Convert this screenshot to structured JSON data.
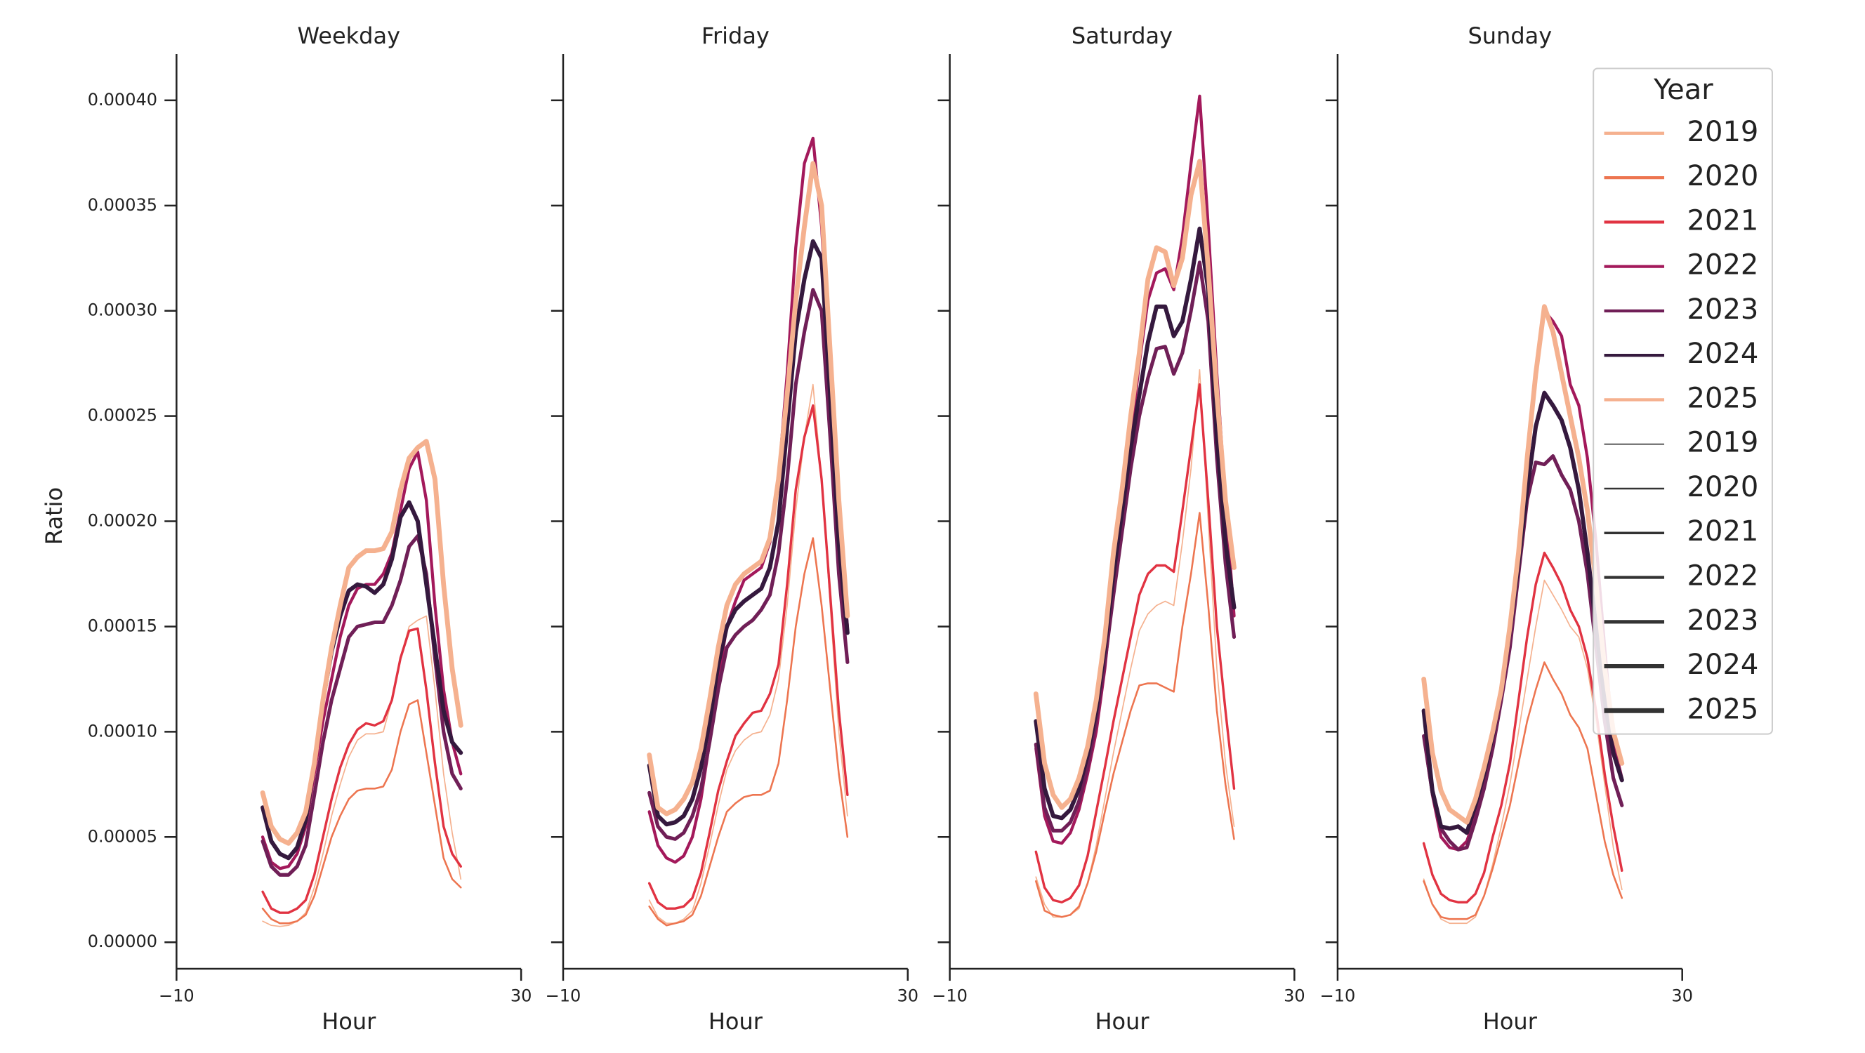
{
  "chart_data": {
    "type": "line",
    "ylabel": "Ratio",
    "xlabel": "Hour",
    "legend_title": "Year",
    "legend": "upper right",
    "xlim": [
      -10,
      30
    ],
    "xticks": [
      {
        "value": -10,
        "label": "−10"
      },
      {
        "value": 30,
        "label": "30"
      }
    ],
    "ylim": [
      -1.26e-05,
      0.000422
    ],
    "yticks": [
      {
        "value": 0,
        "label": "0.00000"
      },
      {
        "value": 5e-05,
        "label": "0.00005"
      },
      {
        "value": 0.0001,
        "label": "0.00010"
      },
      {
        "value": 0.00015,
        "label": "0.00015"
      },
      {
        "value": 0.0002,
        "label": "0.00020"
      },
      {
        "value": 0.00025,
        "label": "0.00025"
      },
      {
        "value": 0.0003,
        "label": "0.00030"
      },
      {
        "value": 0.00035,
        "label": "0.00035"
      },
      {
        "value": 0.0004,
        "label": "0.00040"
      }
    ],
    "x": [
      0,
      1,
      2,
      3,
      4,
      5,
      6,
      7,
      8,
      9,
      10,
      11,
      12,
      13,
      14,
      15,
      16,
      17,
      18,
      19,
      20,
      21,
      22,
      23
    ],
    "series": [
      {
        "name": "2019",
        "color": "#f5b18f",
        "linewidth": 1.0
      },
      {
        "name": "2020",
        "color": "#ed7550",
        "linewidth": 1.5
      },
      {
        "name": "2021",
        "color": "#e13342",
        "linewidth": 2.0
      },
      {
        "name": "2022",
        "color": "#a3195b",
        "linewidth": 2.5
      },
      {
        "name": "2023",
        "color": "#701f57",
        "linewidth": 3.0
      },
      {
        "name": "2024",
        "color": "#35193e",
        "linewidth": 3.5
      },
      {
        "name": "2025",
        "color": "#f5b18f",
        "linewidth": 4.0
      }
    ],
    "panels": [
      {
        "title": "Weekday",
        "values": [
          [
            1e-05,
            8e-06,
            7.5e-06,
            8e-06,
            1e-05,
            1.4e-05,
            2.6e-05,
            4.2e-05,
            6e-05,
            7.5e-05,
            8.8e-05,
            9.6e-05,
            9.9e-05,
            9.9e-05,
            0.0001,
            0.000115,
            0.000135,
            0.00015,
            0.000153,
            0.000155,
            0.00012,
            8e-05,
            5.2e-05,
            3e-05
          ],
          [
            1.6e-05,
            1.1e-05,
            9e-06,
            9e-06,
            1e-05,
            1.3e-05,
            2.2e-05,
            3.6e-05,
            5e-05,
            6e-05,
            6.8e-05,
            7.2e-05,
            7.3e-05,
            7.3e-05,
            7.4e-05,
            8.2e-05,
            0.0001,
            0.000113,
            0.000115,
            9e-05,
            6.5e-05,
            4e-05,
            3e-05,
            2.6e-05
          ],
          [
            2.4e-05,
            1.6e-05,
            1.4e-05,
            1.4e-05,
            1.6e-05,
            2e-05,
            3.2e-05,
            5e-05,
            6.8e-05,
            8.3e-05,
            9.4e-05,
            0.000101,
            0.000104,
            0.000103,
            0.000105,
            0.000115,
            0.000135,
            0.000148,
            0.000149,
            0.00012,
            8.5e-05,
            5.5e-05,
            4.2e-05,
            3.6e-05
          ],
          [
            5e-05,
            3.8e-05,
            3.5e-05,
            3.6e-05,
            4.2e-05,
            5.5e-05,
            8e-05,
            0.000105,
            0.000125,
            0.000145,
            0.00016,
            0.000168,
            0.00017,
            0.00017,
            0.000175,
            0.000185,
            0.000205,
            0.000225,
            0.000233,
            0.00021,
            0.00016,
            0.00012,
            9.5e-05,
            8e-05
          ],
          [
            4.8e-05,
            3.6e-05,
            3.2e-05,
            3.2e-05,
            3.6e-05,
            4.6e-05,
            7e-05,
            9.5e-05,
            0.000115,
            0.00013,
            0.000145,
            0.00015,
            0.000151,
            0.000152,
            0.000152,
            0.00016,
            0.000172,
            0.000188,
            0.000193,
            0.000175,
            0.000135,
            0.0001,
            8e-05,
            7.3e-05
          ],
          [
            6.4e-05,
            4.8e-05,
            4.2e-05,
            4e-05,
            4.5e-05,
            5.8e-05,
            8.5e-05,
            0.000115,
            0.000138,
            0.000155,
            0.000167,
            0.00017,
            0.000169,
            0.000166,
            0.00017,
            0.000182,
            0.000202,
            0.000209,
            0.0002,
            0.00017,
            0.00014,
            0.00011,
            9.5e-05,
            9e-05
          ],
          [
            7.1e-05,
            5.5e-05,
            4.9e-05,
            4.7e-05,
            5.2e-05,
            6.2e-05,
            8.5e-05,
            0.000115,
            0.00014,
            0.00016,
            0.000178,
            0.000183,
            0.000186,
            0.000186,
            0.000187,
            0.000195,
            0.000215,
            0.00023,
            0.000235,
            0.000238,
            0.00022,
            0.00017,
            0.00013,
            0.000103
          ]
        ]
      },
      {
        "title": "Friday",
        "values": [
          [
            2e-05,
            1.2e-05,
            9e-06,
            9e-06,
            1.1e-05,
            1.5e-05,
            2.8e-05,
            4.6e-05,
            6.5e-05,
            8.2e-05,
            9.1e-05,
            9.6e-05,
            9.9e-05,
            0.0001,
            0.000108,
            0.000125,
            0.00016,
            0.000205,
            0.00024,
            0.000265,
            0.00022,
            0.00016,
            0.0001,
            6e-05
          ],
          [
            1.7e-05,
            1.1e-05,
            8e-06,
            9e-06,
            1e-05,
            1.3e-05,
            2.2e-05,
            3.6e-05,
            5e-05,
            6.2e-05,
            6.6e-05,
            6.9e-05,
            7e-05,
            7e-05,
            7.2e-05,
            8.5e-05,
            0.000115,
            0.00015,
            0.000175,
            0.000192,
            0.00016,
            0.00012,
            8e-05,
            5e-05
          ],
          [
            2.8e-05,
            1.9e-05,
            1.6e-05,
            1.6e-05,
            1.7e-05,
            2.1e-05,
            3.3e-05,
            5.2e-05,
            7.2e-05,
            8.6e-05,
            9.8e-05,
            0.000104,
            0.000109,
            0.00011,
            0.000118,
            0.000132,
            0.00017,
            0.000215,
            0.00024,
            0.000255,
            0.00022,
            0.000165,
            0.00011,
            7e-05
          ],
          [
            6.2e-05,
            4.6e-05,
            4e-05,
            3.8e-05,
            4.1e-05,
            5e-05,
            6.8e-05,
            9.5e-05,
            0.000125,
            0.00015,
            0.000162,
            0.000172,
            0.000175,
            0.000178,
            0.00019,
            0.00022,
            0.00027,
            0.00033,
            0.00037,
            0.000382,
            0.00034,
            0.00027,
            0.0002,
            0.00015
          ],
          [
            7.1e-05,
            5.5e-05,
            5e-05,
            4.9e-05,
            5.2e-05,
            6e-05,
            7.3e-05,
            9.5e-05,
            0.00012,
            0.00014,
            0.000146,
            0.00015,
            0.000153,
            0.000158,
            0.000165,
            0.000185,
            0.00022,
            0.000265,
            0.00029,
            0.00031,
            0.0003,
            0.00024,
            0.000175,
            0.000133
          ],
          [
            8.4e-05,
            6e-05,
            5.6e-05,
            5.7e-05,
            6e-05,
            6.8e-05,
            8.3e-05,
            0.000105,
            0.000132,
            0.00015,
            0.000158,
            0.000162,
            0.000165,
            0.000168,
            0.000178,
            0.0002,
            0.000245,
            0.00029,
            0.000315,
            0.000333,
            0.000325,
            0.00026,
            0.00019,
            0.000147
          ],
          [
            8.9e-05,
            6.4e-05,
            6.1e-05,
            6.3e-05,
            6.8e-05,
            7.6e-05,
            9.2e-05,
            0.000115,
            0.00014,
            0.00016,
            0.00017,
            0.000175,
            0.000178,
            0.000181,
            0.000192,
            0.00022,
            0.00026,
            0.000305,
            0.00034,
            0.00037,
            0.00035,
            0.00028,
            0.00021,
            0.000155
          ]
        ]
      },
      {
        "title": "Saturday",
        "values": [
          [
            3.1e-05,
            1.8e-05,
            1.2e-05,
            1.2e-05,
            1.3e-05,
            1.6e-05,
            2.8e-05,
            4.6e-05,
            6.8e-05,
            9e-05,
            0.00011,
            0.00013,
            0.000148,
            0.000156,
            0.00016,
            0.000162,
            0.00016,
            0.00019,
            0.000225,
            0.000272,
            0.0002,
            0.00013,
            8.5e-05,
            5.5e-05
          ],
          [
            2.9e-05,
            1.5e-05,
            1.3e-05,
            1.2e-05,
            1.3e-05,
            1.7e-05,
            2.8e-05,
            4.3e-05,
            6.2e-05,
            8e-05,
            9.5e-05,
            0.00011,
            0.000122,
            0.000123,
            0.000123,
            0.000121,
            0.000119,
            0.00015,
            0.000175,
            0.000204,
            0.00016,
            0.00011,
            7.5e-05,
            4.9e-05
          ],
          [
            4.3e-05,
            2.6e-05,
            2e-05,
            1.9e-05,
            2.1e-05,
            2.7e-05,
            4.1e-05,
            6.2e-05,
            8.3e-05,
            0.000105,
            0.000125,
            0.000145,
            0.000165,
            0.000175,
            0.000179,
            0.000179,
            0.000176,
            0.000205,
            0.000235,
            0.000265,
            0.00021,
            0.00015,
            0.00011,
            7.3e-05
          ],
          [
            9.2e-05,
            6e-05,
            4.8e-05,
            4.7e-05,
            5.2e-05,
            6.3e-05,
            8e-05,
            0.0001,
            0.00013,
            0.00017,
            0.000205,
            0.00024,
            0.000275,
            0.000305,
            0.000318,
            0.00032,
            0.00031,
            0.000335,
            0.00037,
            0.000402,
            0.00034,
            0.00027,
            0.00021,
            0.000155
          ],
          [
            9.4e-05,
            6.4e-05,
            5.3e-05,
            5.3e-05,
            5.7e-05,
            6.7e-05,
            8.3e-05,
            0.000105,
            0.000133,
            0.000165,
            0.000195,
            0.000225,
            0.00025,
            0.000268,
            0.000282,
            0.000283,
            0.00027,
            0.00028,
            0.0003,
            0.000323,
            0.000295,
            0.00023,
            0.00018,
            0.000145
          ],
          [
            0.000105,
            7.3e-05,
            6e-05,
            5.9e-05,
            6.3e-05,
            7.3e-05,
            8.9e-05,
            0.00011,
            0.00014,
            0.000175,
            0.000205,
            0.000235,
            0.00026,
            0.000285,
            0.000302,
            0.000302,
            0.000288,
            0.000295,
            0.000315,
            0.000339,
            0.00031,
            0.00024,
            0.00019,
            0.000159
          ],
          [
            0.000118,
            8.5e-05,
            7e-05,
            6.4e-05,
            6.8e-05,
            7.8e-05,
            9.3e-05,
            0.000115,
            0.000145,
            0.000185,
            0.000215,
            0.00025,
            0.00028,
            0.000315,
            0.00033,
            0.000328,
            0.000312,
            0.000325,
            0.000355,
            0.000371,
            0.00032,
            0.00026,
            0.00021,
            0.000178
          ]
        ]
      },
      {
        "title": "Sunday",
        "values": [
          [
            3e-05,
            1.8e-05,
            1.1e-05,
            9e-06,
            9e-06,
            9e-06,
            1.2e-05,
            2.2e-05,
            3.7e-05,
            5.5e-05,
            7.5e-05,
            0.0001,
            0.000125,
            0.00015,
            0.000172,
            0.000165,
            0.000158,
            0.00015,
            0.000145,
            0.00013,
            0.000105,
            7.5e-05,
            4.5e-05,
            2.5e-05
          ],
          [
            2.9e-05,
            1.8e-05,
            1.2e-05,
            1.1e-05,
            1.1e-05,
            1.1e-05,
            1.3e-05,
            2.2e-05,
            3.5e-05,
            5e-05,
            6.5e-05,
            8.5e-05,
            0.000105,
            0.00012,
            0.000133,
            0.000125,
            0.000118,
            0.000108,
            0.000102,
            9.2e-05,
            7e-05,
            4.8e-05,
            3.2e-05,
            2.1e-05
          ],
          [
            4.7e-05,
            3.2e-05,
            2.3e-05,
            2e-05,
            1.9e-05,
            1.9e-05,
            2.3e-05,
            3.3e-05,
            5e-05,
            6.5e-05,
            8.5e-05,
            0.000115,
            0.000145,
            0.00017,
            0.000185,
            0.000178,
            0.00017,
            0.000158,
            0.00015,
            0.000135,
            0.00011,
            8e-05,
            5.5e-05,
            3.4e-05
          ],
          [
            9.8e-05,
            7e-05,
            5e-05,
            4.5e-05,
            4.4e-05,
            4.8e-05,
            6e-05,
            7.5e-05,
            9.5e-05,
            0.000115,
            0.000145,
            0.00018,
            0.000225,
            0.00027,
            0.0003,
            0.000295,
            0.000288,
            0.000265,
            0.000255,
            0.00023,
            0.00019,
            0.00014,
            9.5e-05,
            7.8e-05
          ],
          [
            9.8e-05,
            7.1e-05,
            5.4e-05,
            4.8e-05,
            4.4e-05,
            4.5e-05,
            5.8e-05,
            7.3e-05,
            9.2e-05,
            0.000115,
            0.00014,
            0.000175,
            0.00021,
            0.000228,
            0.000227,
            0.000231,
            0.000222,
            0.000215,
            0.0002,
            0.000175,
            0.00014,
            0.000105,
            7.8e-05,
            6.5e-05
          ],
          [
            0.00011,
            7.2e-05,
            5.5e-05,
            5.4e-05,
            5.5e-05,
            5.2e-05,
            6.5e-05,
            8e-05,
            9.8e-05,
            0.00012,
            0.000148,
            0.00018,
            0.000215,
            0.000245,
            0.000261,
            0.000255,
            0.000248,
            0.000235,
            0.000215,
            0.000185,
            0.00015,
            0.000115,
            9e-05,
            7.7e-05
          ],
          [
            0.000125,
            9e-05,
            7.2e-05,
            6.3e-05,
            6e-05,
            5.7e-05,
            6.8e-05,
            8.3e-05,
            0.0001,
            0.00012,
            0.00015,
            0.000185,
            0.00023,
            0.00027,
            0.000302,
            0.00029,
            0.00027,
            0.00025,
            0.00023,
            0.000205,
            0.00017,
            0.00013,
            0.0001,
            8.5e-05
          ]
        ]
      }
    ]
  }
}
